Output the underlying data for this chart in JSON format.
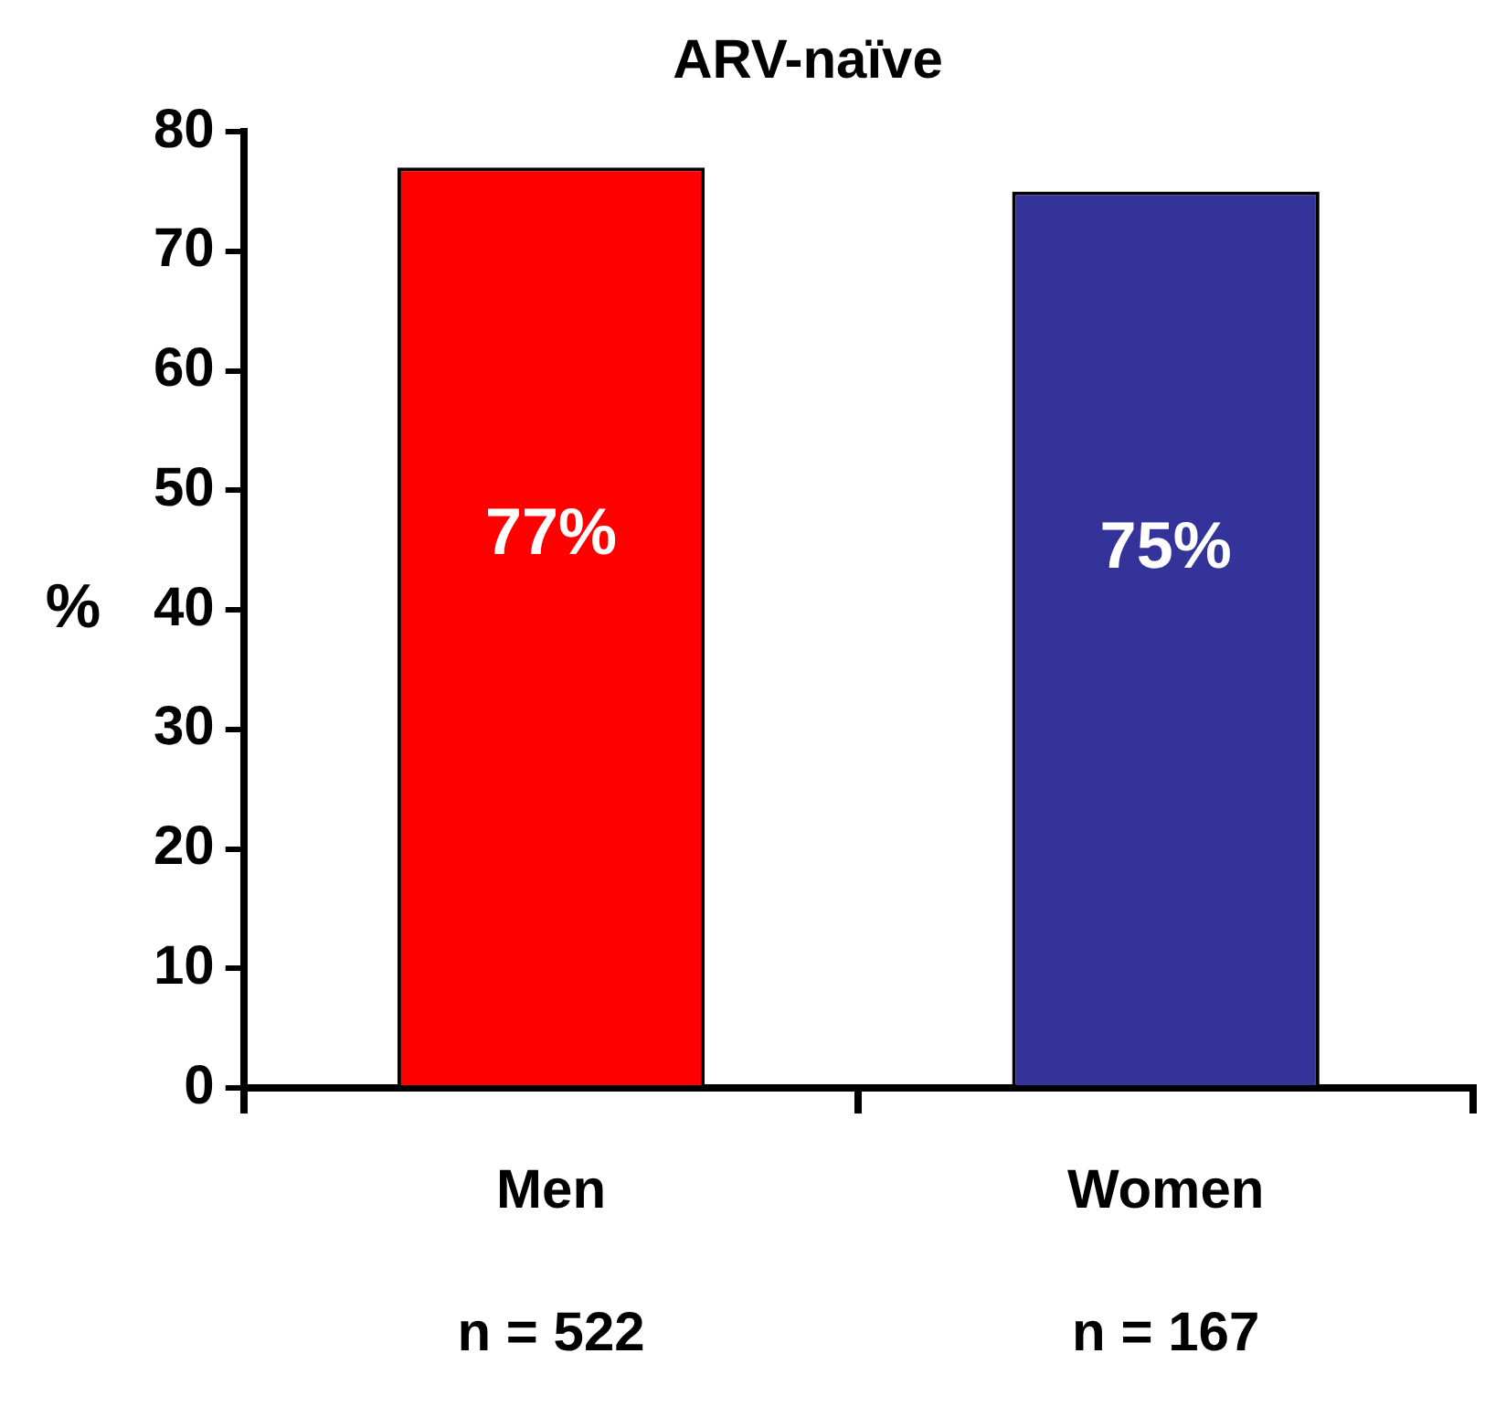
{
  "chart_data": {
    "type": "bar",
    "title": "ARV-naïve",
    "ylabel": "%",
    "categories": [
      "Men\nn = 522",
      "Women\nn = 167"
    ],
    "series": [
      {
        "values": [
          77,
          75
        ],
        "colors": [
          "#ff0000",
          "#333399"
        ],
        "value_labels": [
          "77%",
          "75%"
        ]
      }
    ],
    "ylim": [
      0,
      80
    ],
    "yticks": [
      0,
      10,
      20,
      30,
      40,
      50,
      60,
      70,
      80
    ],
    "grid": false,
    "legend": false
  }
}
